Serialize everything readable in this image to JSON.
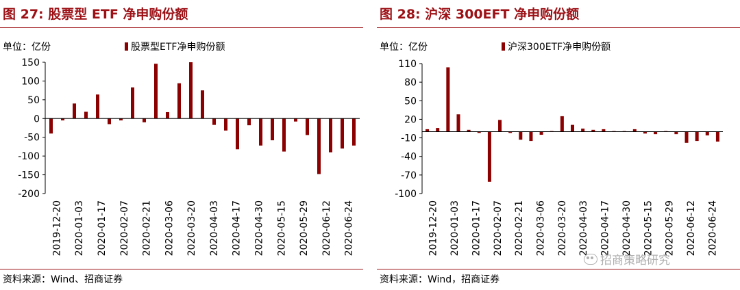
{
  "page": {
    "watermark": "招商策略研究",
    "watermark_icon": "wechat-icon"
  },
  "panels": [
    {
      "title": "图 27:  股票型 ETF 净申购份额",
      "source": "资料来源：Wind、招商证券"
    },
    {
      "title": "图 28:  沪深 300EFT 净申购份额",
      "source": "资料来源：Wind，招商证券"
    }
  ],
  "chart_data": [
    {
      "type": "bar",
      "title": "股票型ETF净申购份额",
      "unit_label": "单位：亿份",
      "legend": "股票型ETF净申购份额",
      "ylim": [
        -200,
        150
      ],
      "yticks": [
        150,
        100,
        50,
        0,
        -50,
        -100,
        -150,
        -200
      ],
      "xtick_labels": [
        "2019-12-20",
        "2020-01-03",
        "2020-01-17",
        "2020-02-07",
        "2020-02-21",
        "2020-03-06",
        "2020-03-20",
        "2020-04-03",
        "2020-04-17",
        "2020-04-30",
        "2020-05-15",
        "2020-05-29",
        "2020-06-12",
        "2020-06-24"
      ],
      "values": [
        -40,
        -5,
        40,
        18,
        64,
        -15,
        -5,
        83,
        -10,
        146,
        17,
        94,
        150,
        75,
        -17,
        -32,
        -82,
        -18,
        -72,
        -58,
        -88,
        -8,
        -44,
        -148,
        -90,
        -80,
        -72
      ],
      "color": "#8b0000"
    },
    {
      "type": "bar",
      "title": "沪深300ETF净申购份额",
      "unit_label": "单位：亿份",
      "legend": "沪深300ETF净申购份额",
      "ylim": [
        -100,
        110
      ],
      "yticks": [
        110,
        80,
        50,
        20,
        -10,
        -40,
        -70,
        -100
      ],
      "xtick_labels": [
        "2019-12-20",
        "2020-01-03",
        "2020-01-17",
        "2020-02-07",
        "2020-02-21",
        "2020-03-06",
        "2020-03-20",
        "2020-04-03",
        "2020-04-17",
        "2020-04-30",
        "2020-05-15",
        "2020-05-29",
        "2020-06-12",
        "2020-06-24"
      ],
      "values": [
        4,
        6,
        104,
        28,
        3,
        -2,
        -81,
        19,
        -2,
        -13,
        -15,
        -5,
        1,
        25,
        11,
        5,
        3,
        4,
        1,
        1,
        4,
        -3,
        -4,
        1,
        -4,
        -18,
        -15,
        -6,
        -16
      ],
      "color": "#8b0000"
    }
  ]
}
